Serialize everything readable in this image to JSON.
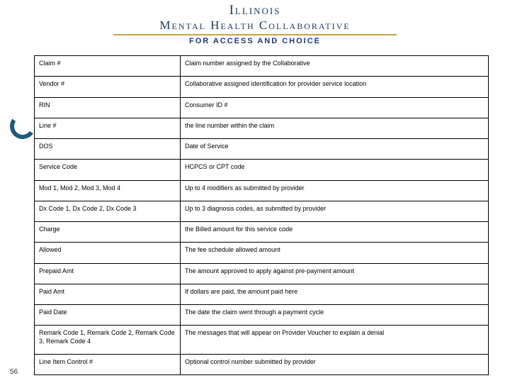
{
  "header": {
    "title_line1": "Illinois",
    "title_line2": "Mental Health Collaborative",
    "tagline": "FOR ACCESS AND CHOICE"
  },
  "table": {
    "rows": [
      {
        "field": "Claim #",
        "desc": "Claim number assigned by the Collaborative"
      },
      {
        "field": "Vendor #",
        "desc": "Collaborative assigned identification for provider service location"
      },
      {
        "field": "RIN",
        "desc": "Consumer ID #"
      },
      {
        "field": "Line #",
        "desc": "the line number within the claim"
      },
      {
        "field": "DOS",
        "desc": "Date of Service"
      },
      {
        "field": "Service Code",
        "desc": "HCPCS or CPT code"
      },
      {
        "field": "Mod 1, Mod 2, Mod 3, Mod 4",
        "desc": "Up to 4 modifiers as submitted by provider"
      },
      {
        "field": "Dx Code 1, Dx Code 2, Dx Code 3",
        "desc": "Up to 3 diagnosis codes, as submitted by provider"
      },
      {
        "field": "Charge",
        "desc": "the Billed amount for this service code"
      },
      {
        "field": "Allowed",
        "desc": "The fee schedule allowed amount"
      },
      {
        "field": "Prepaid Amt",
        "desc": "The amount approved to apply against pre-payment amount"
      },
      {
        "field": "Paid Amt",
        "desc": "If dollars are paid, the amount paid here"
      },
      {
        "field": "Paid Date",
        "desc": "The date the claim went through a payment cycle"
      },
      {
        "field": "Remark Code 1, Remark Code 2, Remark Code 3, Remark Code 4",
        "desc": "The messages that will appear on Provider Voucher to explain a denial"
      },
      {
        "field": "Line Item Control #",
        "desc": "Optional control number submitted by provider"
      }
    ]
  },
  "page_number": "56",
  "colors": {
    "brand_text": "#1a3a5c",
    "rule": "#c9a050",
    "swoosh": "#1a5c7a",
    "border": "#000000"
  }
}
